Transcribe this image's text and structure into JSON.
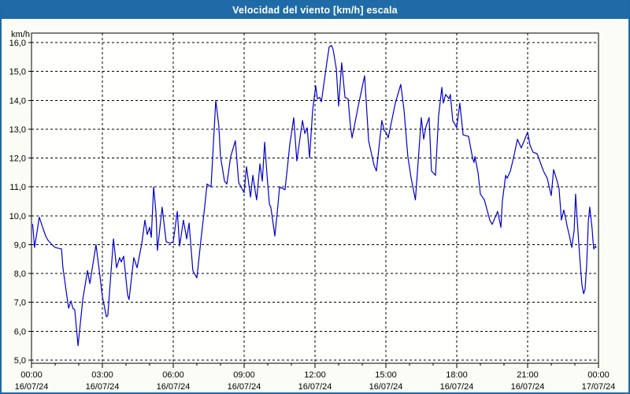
{
  "window": {
    "title": "Velocidad del viento [km/h] escala"
  },
  "colors": {
    "titlebar_bg": "#1f6ba7",
    "frame_border": "#1e6aa5",
    "window_bg": "#fbfcf5",
    "plot_bg": "#fffffe",
    "series_line": "#0000cc",
    "grid": "#000000",
    "label_text": "#000000",
    "title_text": "#ffffff"
  },
  "chart_data": {
    "type": "line",
    "title": "Velocidad del viento [km/h] escala",
    "ylabel": "km/h",
    "xlabel": "",
    "ylim": [
      5.0,
      16.0
    ],
    "y_tick_step": 1.0,
    "grid": true,
    "legend": "none",
    "y_ticks": [
      {
        "value": 16,
        "label": "16,0"
      },
      {
        "value": 15,
        "label": "15,0"
      },
      {
        "value": 14,
        "label": "14,0"
      },
      {
        "value": 13,
        "label": "13,0"
      },
      {
        "value": 12,
        "label": "12,0"
      },
      {
        "value": 11,
        "label": "11,0"
      },
      {
        "value": 10,
        "label": "10,0"
      },
      {
        "value": 9,
        "label": "9,0"
      },
      {
        "value": 8,
        "label": "8,0"
      },
      {
        "value": 7,
        "label": "7,0"
      },
      {
        "value": 6,
        "label": "6,0"
      },
      {
        "value": 5,
        "label": "5,0"
      }
    ],
    "x_ticks": [
      {
        "hour": 0,
        "time": "00:00",
        "date": "16/07/24"
      },
      {
        "hour": 3,
        "time": "03:00",
        "date": "16/07/24"
      },
      {
        "hour": 6,
        "time": "06:00",
        "date": "16/07/24"
      },
      {
        "hour": 9,
        "time": "09:00",
        "date": "16/07/24"
      },
      {
        "hour": 12,
        "time": "12:00",
        "date": "16/07/24"
      },
      {
        "hour": 15,
        "time": "15:00",
        "date": "16/07/24"
      },
      {
        "hour": 18,
        "time": "18:00",
        "date": "16/07/24"
      },
      {
        "hour": 21,
        "time": "21:00",
        "date": "16/07/24"
      },
      {
        "hour": 24,
        "time": "00:00",
        "date": "17/07/24"
      }
    ],
    "series": [
      {
        "name": "Velocidad del viento [km/h]",
        "points": [
          [
            0.05,
            9.7
          ],
          [
            0.13,
            8.9
          ],
          [
            0.33,
            9.95
          ],
          [
            0.47,
            9.6
          ],
          [
            0.6,
            9.3
          ],
          [
            0.7,
            9.15
          ],
          [
            0.87,
            9.0
          ],
          [
            1.0,
            8.9
          ],
          [
            1.27,
            8.85
          ],
          [
            1.33,
            8.2
          ],
          [
            1.57,
            6.8
          ],
          [
            1.67,
            7.05
          ],
          [
            1.75,
            6.8
          ],
          [
            1.83,
            6.75
          ],
          [
            1.97,
            5.5
          ],
          [
            2.17,
            7.1
          ],
          [
            2.37,
            8.1
          ],
          [
            2.47,
            7.65
          ],
          [
            2.73,
            9.0
          ],
          [
            2.87,
            8.1
          ],
          [
            3.0,
            7.2
          ],
          [
            3.17,
            6.5
          ],
          [
            3.23,
            6.55
          ],
          [
            3.47,
            9.2
          ],
          [
            3.6,
            8.2
          ],
          [
            3.73,
            8.55
          ],
          [
            3.8,
            8.4
          ],
          [
            3.9,
            8.6
          ],
          [
            4.07,
            7.25
          ],
          [
            4.13,
            7.1
          ],
          [
            4.33,
            8.55
          ],
          [
            4.47,
            8.2
          ],
          [
            4.67,
            9.05
          ],
          [
            4.8,
            9.85
          ],
          [
            4.9,
            9.35
          ],
          [
            5.0,
            9.6
          ],
          [
            5.07,
            9.25
          ],
          [
            5.17,
            11.0
          ],
          [
            5.27,
            10.1
          ],
          [
            5.33,
            8.8
          ],
          [
            5.53,
            10.3
          ],
          [
            5.7,
            9.1
          ],
          [
            5.87,
            9.05
          ],
          [
            6.0,
            9.1
          ],
          [
            6.17,
            10.15
          ],
          [
            6.27,
            8.95
          ],
          [
            6.43,
            9.85
          ],
          [
            6.57,
            9.2
          ],
          [
            6.67,
            9.75
          ],
          [
            6.83,
            8.1
          ],
          [
            7.0,
            7.85
          ],
          [
            7.17,
            9.15
          ],
          [
            7.33,
            10.3
          ],
          [
            7.43,
            11.1
          ],
          [
            7.6,
            11.0
          ],
          [
            7.8,
            14.0
          ],
          [
            7.93,
            13.1
          ],
          [
            8.0,
            12.05
          ],
          [
            8.17,
            11.2
          ],
          [
            8.27,
            11.1
          ],
          [
            8.43,
            12.05
          ],
          [
            8.63,
            12.6
          ],
          [
            8.77,
            11.15
          ],
          [
            9.0,
            10.8
          ],
          [
            9.1,
            11.7
          ],
          [
            9.27,
            10.65
          ],
          [
            9.37,
            11.4
          ],
          [
            9.47,
            10.85
          ],
          [
            9.53,
            10.55
          ],
          [
            9.67,
            11.8
          ],
          [
            9.77,
            11.2
          ],
          [
            9.87,
            12.55
          ],
          [
            9.97,
            11.4
          ],
          [
            10.07,
            10.4
          ],
          [
            10.13,
            10.3
          ],
          [
            10.3,
            9.3
          ],
          [
            10.43,
            10.35
          ],
          [
            10.5,
            11.0
          ],
          [
            10.73,
            10.9
          ],
          [
            10.83,
            11.65
          ],
          [
            10.93,
            12.45
          ],
          [
            11.1,
            13.4
          ],
          [
            11.23,
            11.9
          ],
          [
            11.47,
            13.3
          ],
          [
            11.57,
            12.85
          ],
          [
            11.67,
            13.05
          ],
          [
            11.77,
            12.0
          ],
          [
            11.9,
            13.65
          ],
          [
            12.03,
            14.5
          ],
          [
            12.1,
            14.05
          ],
          [
            12.2,
            14.1
          ],
          [
            12.27,
            13.95
          ],
          [
            12.5,
            15.3
          ],
          [
            12.6,
            15.85
          ],
          [
            12.7,
            15.9
          ],
          [
            12.77,
            15.75
          ],
          [
            12.9,
            15.1
          ],
          [
            13.0,
            13.8
          ],
          [
            13.13,
            15.3
          ],
          [
            13.27,
            14.1
          ],
          [
            13.4,
            14.05
          ],
          [
            13.5,
            13.1
          ],
          [
            13.57,
            12.7
          ],
          [
            13.83,
            13.8
          ],
          [
            14.1,
            14.85
          ],
          [
            14.27,
            12.6
          ],
          [
            14.5,
            11.75
          ],
          [
            14.6,
            11.55
          ],
          [
            14.83,
            13.3
          ],
          [
            14.93,
            12.95
          ],
          [
            15.0,
            12.9
          ],
          [
            15.1,
            12.7
          ],
          [
            15.4,
            13.9
          ],
          [
            15.63,
            14.55
          ],
          [
            15.77,
            13.65
          ],
          [
            15.93,
            12.05
          ],
          [
            16.07,
            11.3
          ],
          [
            16.25,
            10.55
          ],
          [
            16.5,
            13.4
          ],
          [
            16.6,
            12.65
          ],
          [
            16.7,
            13.1
          ],
          [
            16.83,
            13.4
          ],
          [
            16.93,
            11.55
          ],
          [
            17.1,
            11.4
          ],
          [
            17.23,
            13.45
          ],
          [
            17.37,
            14.45
          ],
          [
            17.43,
            13.9
          ],
          [
            17.53,
            14.2
          ],
          [
            17.67,
            14.05
          ],
          [
            17.73,
            14.2
          ],
          [
            17.83,
            13.3
          ],
          [
            18.0,
            13.05
          ],
          [
            18.13,
            13.9
          ],
          [
            18.27,
            12.8
          ],
          [
            18.5,
            12.75
          ],
          [
            18.67,
            12.0
          ],
          [
            18.73,
            11.85
          ],
          [
            18.77,
            12.05
          ],
          [
            18.9,
            11.5
          ],
          [
            19.0,
            10.75
          ],
          [
            19.17,
            10.55
          ],
          [
            19.4,
            9.85
          ],
          [
            19.5,
            9.7
          ],
          [
            19.73,
            10.15
          ],
          [
            19.87,
            9.6
          ],
          [
            19.93,
            10.5
          ],
          [
            20.07,
            11.4
          ],
          [
            20.13,
            11.3
          ],
          [
            20.27,
            11.55
          ],
          [
            20.4,
            12.0
          ],
          [
            20.57,
            12.65
          ],
          [
            20.73,
            12.35
          ],
          [
            20.83,
            12.55
          ],
          [
            21.0,
            12.9
          ],
          [
            21.1,
            12.45
          ],
          [
            21.23,
            12.2
          ],
          [
            21.4,
            12.15
          ],
          [
            21.67,
            11.55
          ],
          [
            21.83,
            11.3
          ],
          [
            22.0,
            10.7
          ],
          [
            22.1,
            11.6
          ],
          [
            22.23,
            11.25
          ],
          [
            22.33,
            10.95
          ],
          [
            22.43,
            9.85
          ],
          [
            22.53,
            10.2
          ],
          [
            22.6,
            9.95
          ],
          [
            22.67,
            9.65
          ],
          [
            22.77,
            9.3
          ],
          [
            22.87,
            8.9
          ],
          [
            22.97,
            9.5
          ],
          [
            23.03,
            10.75
          ],
          [
            23.1,
            9.85
          ],
          [
            23.17,
            9.0
          ],
          [
            23.23,
            8.3
          ],
          [
            23.3,
            7.6
          ],
          [
            23.37,
            7.3
          ],
          [
            23.43,
            7.45
          ],
          [
            23.5,
            8.3
          ],
          [
            23.57,
            9.8
          ],
          [
            23.63,
            10.3
          ],
          [
            23.73,
            9.55
          ],
          [
            23.77,
            9.1
          ],
          [
            23.8,
            8.85
          ],
          [
            23.87,
            8.95
          ],
          [
            23.9,
            8.9
          ]
        ]
      }
    ]
  }
}
